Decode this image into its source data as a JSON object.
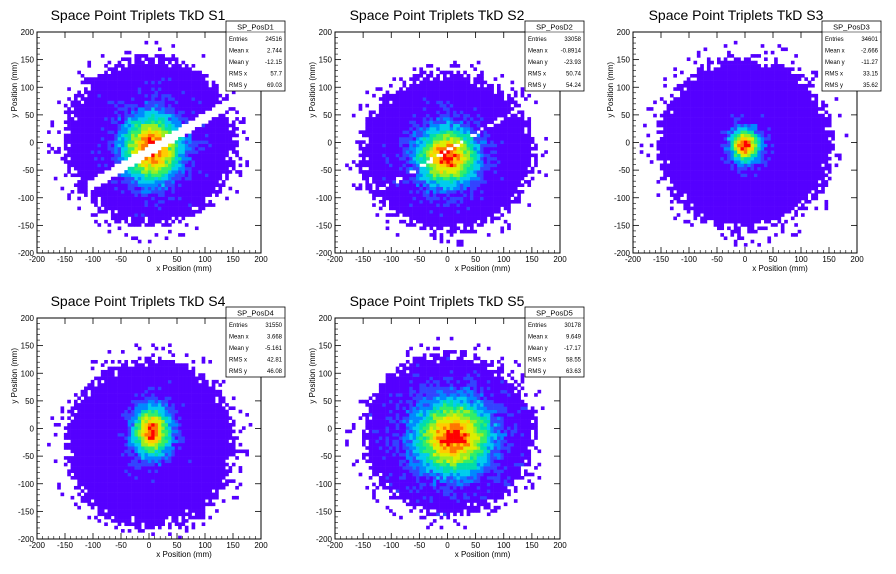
{
  "chart_data": [
    {
      "type": "heatmap",
      "title": "Space Point Triplets TkD S1",
      "xlabel": "x Position (mm)",
      "ylabel": "y Position (mm)",
      "xlim": [
        -200,
        200
      ],
      "ylim": [
        -200,
        200
      ],
      "xticks": [
        "-200",
        "-150",
        "-100",
        "-50",
        "0",
        "50",
        "100",
        "150",
        "200"
      ],
      "yticks": [
        "-200",
        "-150",
        "-100",
        "-50",
        "0",
        "50",
        "100",
        "150",
        "200"
      ],
      "stats": {
        "name": "SP_PosD1",
        "rows": [
          {
            "label": "Entries",
            "value": "24516"
          },
          {
            "label": "Mean x",
            "value": "2.744"
          },
          {
            "label": "Mean y",
            "value": "-12.15"
          },
          {
            "label": "RMS x",
            "value": "57.7"
          },
          {
            "label": "RMS y",
            "value": "69.03"
          }
        ]
      },
      "distribution": {
        "x_extent": [
          -155,
          160
        ],
        "y_extent": [
          -155,
          160
        ],
        "core_sigma_x": 35,
        "core_sigma_y": 40,
        "core_center": [
          5,
          -10
        ],
        "gap": "diagonal band through center, slope ~0.6",
        "peak_density": "red near (5,-10)"
      }
    },
    {
      "type": "heatmap",
      "title": "Space Point Triplets TkD S2",
      "xlabel": "x Position (mm)",
      "ylabel": "y Position (mm)",
      "xlim": [
        -200,
        200
      ],
      "ylim": [
        -200,
        200
      ],
      "xticks": [
        "-200",
        "-150",
        "-100",
        "-50",
        "0",
        "50",
        "100",
        "150",
        "200"
      ],
      "yticks": [
        "-200",
        "-150",
        "-100",
        "-50",
        "0",
        "50",
        "100",
        "150",
        "200"
      ],
      "stats": {
        "name": "SP_PosD2",
        "rows": [
          {
            "label": "Entries",
            "value": "33058"
          },
          {
            "label": "Mean x",
            "value": "-0.8914"
          },
          {
            "label": "Mean y",
            "value": "-23.93"
          },
          {
            "label": "RMS x",
            "value": "50.74"
          },
          {
            "label": "RMS y",
            "value": "54.24"
          }
        ]
      },
      "distribution": {
        "x_extent": [
          -160,
          160
        ],
        "y_extent": [
          -165,
          130
        ],
        "core_sigma_x": 35,
        "core_sigma_y": 35,
        "core_center": [
          0,
          -25
        ],
        "gap": "thin diagonal line",
        "peak_density": "red near (5,-25)"
      }
    },
    {
      "type": "heatmap",
      "title": "Space Point Triplets TkD S3",
      "xlabel": "x Position (mm)",
      "ylabel": "y Position (mm)",
      "xlim": [
        -200,
        200
      ],
      "ylim": [
        -200,
        200
      ],
      "xticks": [
        "-200",
        "-150",
        "-100",
        "-50",
        "0",
        "50",
        "100",
        "150",
        "200"
      ],
      "yticks": [
        "-200",
        "-150",
        "-100",
        "-50",
        "0",
        "50",
        "100",
        "150",
        "200"
      ],
      "stats": {
        "name": "SP_PosD3",
        "rows": [
          {
            "label": "Entries",
            "value": "34601"
          },
          {
            "label": "Mean x",
            "value": "-2.666"
          },
          {
            "label": "Mean y",
            "value": "-11.27"
          },
          {
            "label": "RMS x",
            "value": "33.15"
          },
          {
            "label": "RMS y",
            "value": "35.62"
          }
        ]
      },
      "distribution": {
        "x_extent": [
          -160,
          160
        ],
        "y_extent": [
          -165,
          160
        ],
        "core_sigma_x": 18,
        "core_sigma_y": 20,
        "core_center": [
          0,
          -5
        ],
        "peak_density": "red near (0,-5)"
      }
    },
    {
      "type": "heatmap",
      "title": "Space Point Triplets TkD S4",
      "xlabel": "x Position (mm)",
      "ylabel": "y Position (mm)",
      "xlim": [
        -200,
        200
      ],
      "ylim": [
        -200,
        200
      ],
      "xticks": [
        "-200",
        "-150",
        "-100",
        "-50",
        "0",
        "50",
        "100",
        "150",
        "200"
      ],
      "yticks": [
        "-200",
        "-150",
        "-100",
        "-50",
        "0",
        "50",
        "100",
        "150",
        "200"
      ],
      "stats": {
        "name": "SP_PosD4",
        "rows": [
          {
            "label": "Entries",
            "value": "31550"
          },
          {
            "label": "Mean x",
            "value": "3.668"
          },
          {
            "label": "Mean y",
            "value": "-5.161"
          },
          {
            "label": "RMS x",
            "value": "42.81"
          },
          {
            "label": "RMS y",
            "value": "46.08"
          }
        ]
      },
      "distribution": {
        "x_extent": [
          -155,
          160
        ],
        "y_extent": [
          -185,
          130
        ],
        "core_sigma_x": 22,
        "core_sigma_y": 30,
        "core_center": [
          5,
          -5
        ],
        "peak_density": "red near (5,-10)"
      }
    },
    {
      "type": "heatmap",
      "title": "Space Point Triplets TkD S5",
      "xlabel": "x Position (mm)",
      "ylabel": "y Position (mm)",
      "xlim": [
        -200,
        200
      ],
      "ylim": [
        -200,
        200
      ],
      "xticks": [
        "-200",
        "-150",
        "-100",
        "-50",
        "0",
        "50",
        "100",
        "150",
        "200"
      ],
      "yticks": [
        "-200",
        "-150",
        "-100",
        "-50",
        "0",
        "50",
        "100",
        "150",
        "200"
      ],
      "stats": {
        "name": "SP_PosD5",
        "rows": [
          {
            "label": "Entries",
            "value": "30178"
          },
          {
            "label": "Mean x",
            "value": "9.649"
          },
          {
            "label": "Mean y",
            "value": "-17.17"
          },
          {
            "label": "RMS x",
            "value": "58.55"
          },
          {
            "label": "RMS y",
            "value": "63.63"
          }
        ]
      },
      "distribution": {
        "x_extent": [
          -155,
          160
        ],
        "y_extent": [
          -160,
          140
        ],
        "core_sigma_x": 45,
        "core_sigma_y": 45,
        "core_center": [
          10,
          -15
        ],
        "peak_density": "red near (10,-10)"
      }
    }
  ],
  "colors": {
    "palette": [
      "#5500ff",
      "#3344ff",
      "#0088ff",
      "#00ccee",
      "#00ddaa",
      "#33ee66",
      "#99ee22",
      "#ddee00",
      "#ffcc00",
      "#ff7700",
      "#ff0000"
    ],
    "frame": "#000000",
    "background": "#ffffff"
  }
}
